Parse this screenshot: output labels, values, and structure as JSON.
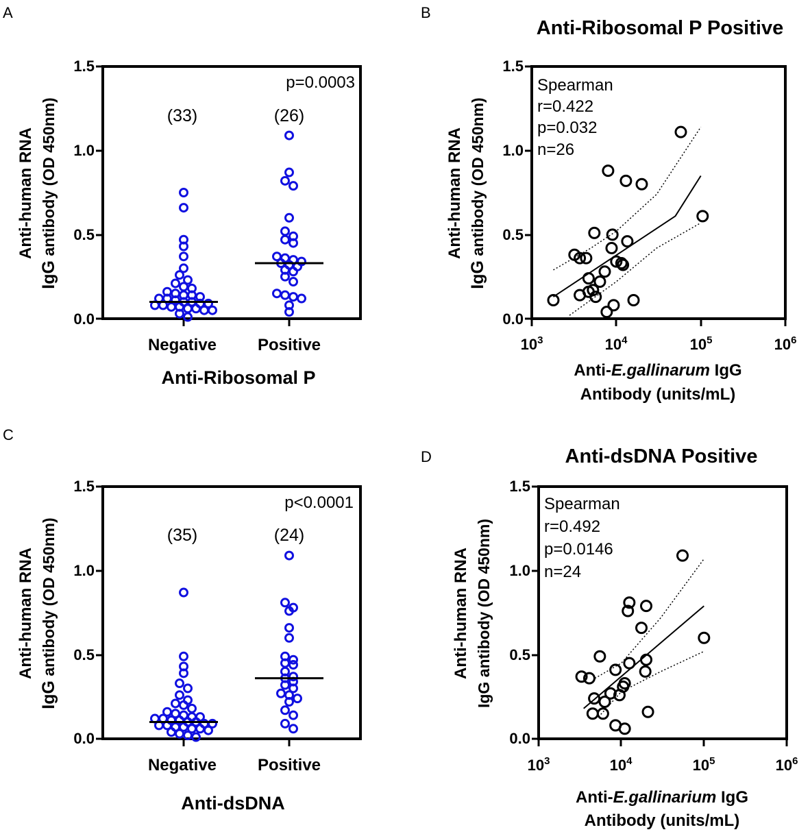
{
  "figure": {
    "colors": {
      "axis": "#000000",
      "scatter_blue": "#1010e0",
      "scatter_black": "#000000"
    }
  },
  "chart_data": [
    {
      "panel": "A",
      "type": "scatter",
      "title": "",
      "xlabel": "Anti-Ribosomal  P",
      "ylabel_line1": "Anti-human RNA",
      "ylabel_line2_bold": "IgG",
      "ylabel_line2_rest": " antibody (OD 450nm)",
      "ylim": [
        0,
        1.5
      ],
      "yticks": [
        "0.0",
        "0.5",
        "1.0",
        "1.5"
      ],
      "yticks_values": [
        0,
        0.5,
        1.0,
        1.5
      ],
      "categories": [
        "Negative",
        "Positive"
      ],
      "counts": [
        "(33)",
        "(26)"
      ],
      "annotation": "p=0.0003",
      "series": [
        {
          "name": "Negative",
          "median": 0.1,
          "values": [
            0.75,
            0.66,
            0.47,
            0.43,
            0.37,
            0.3,
            0.26,
            0.23,
            0.21,
            0.19,
            0.18,
            0.16,
            0.15,
            0.14,
            0.14,
            0.13,
            0.12,
            0.12,
            0.11,
            0.1,
            0.1,
            0.09,
            0.09,
            0.08,
            0.08,
            0.07,
            0.07,
            0.06,
            0.06,
            0.05,
            0.05,
            0.03,
            0.01
          ]
        },
        {
          "name": "Positive",
          "median": 0.33,
          "values": [
            1.09,
            0.87,
            0.82,
            0.79,
            0.6,
            0.52,
            0.49,
            0.47,
            0.45,
            0.37,
            0.36,
            0.35,
            0.34,
            0.33,
            0.32,
            0.31,
            0.29,
            0.28,
            0.25,
            0.22,
            0.15,
            0.14,
            0.13,
            0.12,
            0.08,
            0.04
          ]
        }
      ]
    },
    {
      "panel": "B",
      "type": "scatter",
      "title": "Anti-Ribosomal P Positive",
      "xlabel_pre": "Anti-",
      "xlabel_italic": "E.gallinarum",
      "xlabel_post": " IgG",
      "xlabel_line2": "Antibody (units/mL)",
      "ylabel_line1": "Anti-human RNA",
      "ylabel_line2_bold": "IgG",
      "ylabel_line2_rest": " antibody (OD 450nm)",
      "xscale": "log",
      "xlim": [
        1000,
        1000000
      ],
      "ylim": [
        0,
        1.5
      ],
      "yticks": [
        "0.0",
        "0.5",
        "1.0",
        "1.5"
      ],
      "yticks_values": [
        0,
        0.5,
        1.0,
        1.5
      ],
      "xticks": [
        {
          "base": "10",
          "exp": "3"
        },
        {
          "base": "10",
          "exp": "4"
        },
        {
          "base": "10",
          "exp": "5"
        },
        {
          "base": "10",
          "exp": "6"
        }
      ],
      "xticks_values": [
        1000,
        10000,
        100000,
        1000000
      ],
      "stats": [
        "Spearman",
        "r=0.422",
        "p=0.032",
        "n=26"
      ],
      "points": [
        [
          58000,
          1.11
        ],
        [
          8000,
          0.88
        ],
        [
          13000,
          0.82
        ],
        [
          20000,
          0.8
        ],
        [
          105000,
          0.61
        ],
        [
          5500,
          0.51
        ],
        [
          9000,
          0.5
        ],
        [
          13500,
          0.46
        ],
        [
          8800,
          0.42
        ],
        [
          3200,
          0.38
        ],
        [
          3700,
          0.36
        ],
        [
          4400,
          0.36
        ],
        [
          10000,
          0.34
        ],
        [
          11500,
          0.33
        ],
        [
          12000,
          0.32
        ],
        [
          7300,
          0.28
        ],
        [
          4700,
          0.24
        ],
        [
          6400,
          0.22
        ],
        [
          5300,
          0.17
        ],
        [
          4700,
          0.16
        ],
        [
          3700,
          0.14
        ],
        [
          5700,
          0.13
        ],
        [
          1800,
          0.11
        ],
        [
          16000,
          0.11
        ],
        [
          9300,
          0.08
        ],
        [
          7700,
          0.04
        ]
      ],
      "fit": {
        "x": [
          1800,
          50000,
          100000
        ],
        "y": [
          0.13,
          0.61,
          0.85
        ]
      },
      "ci_upper": {
        "x": [
          1800,
          5000,
          10000,
          30000,
          100000
        ],
        "y": [
          0.29,
          0.42,
          0.52,
          0.74,
          1.14
        ]
      },
      "ci_lower": {
        "x": [
          2800,
          10000,
          30000,
          100000
        ],
        "y": [
          0.02,
          0.22,
          0.42,
          0.57
        ]
      }
    },
    {
      "panel": "C",
      "type": "scatter",
      "title": "",
      "xlabel": "Anti-dsDNA",
      "ylabel_line1": "Anti-human RNA",
      "ylabel_line2_bold": "IgG",
      "ylabel_line2_rest": " antibody (OD 450nm)",
      "ylim": [
        0,
        1.5
      ],
      "yticks": [
        "0.0",
        "0.5",
        "1.0",
        "1.5"
      ],
      "yticks_values": [
        0,
        0.5,
        1.0,
        1.5
      ],
      "categories": [
        "Negative",
        "Positive"
      ],
      "counts": [
        "(35)",
        "(24)"
      ],
      "annotation": "p<0.0001",
      "series": [
        {
          "name": "Negative",
          "median": 0.1,
          "values": [
            0.87,
            0.49,
            0.43,
            0.39,
            0.33,
            0.3,
            0.26,
            0.23,
            0.21,
            0.2,
            0.18,
            0.16,
            0.15,
            0.14,
            0.13,
            0.13,
            0.12,
            0.12,
            0.11,
            0.11,
            0.1,
            0.1,
            0.09,
            0.09,
            0.08,
            0.08,
            0.07,
            0.07,
            0.06,
            0.06,
            0.05,
            0.04,
            0.03,
            0.02,
            0.01
          ]
        },
        {
          "name": "Positive",
          "median": 0.36,
          "values": [
            1.09,
            0.81,
            0.78,
            0.76,
            0.66,
            0.6,
            0.49,
            0.47,
            0.45,
            0.44,
            0.4,
            0.37,
            0.36,
            0.34,
            0.32,
            0.3,
            0.27,
            0.26,
            0.24,
            0.22,
            0.17,
            0.14,
            0.09,
            0.06
          ]
        }
      ]
    },
    {
      "panel": "D",
      "type": "scatter",
      "title": "Anti-dsDNA Positive",
      "xlabel_pre": "Anti-",
      "xlabel_italic": "E.gallinarium",
      "xlabel_post": " IgG",
      "xlabel_line2": "Antibody (units/mL)",
      "ylabel_line1": "Anti-human RNA",
      "ylabel_line2_bold": "",
      "ylabel_line2_rest": "IgG antibody (OD 450nm)",
      "xscale": "log",
      "xlim": [
        1000,
        1000000
      ],
      "ylim": [
        0,
        1.5
      ],
      "yticks": [
        "0.0",
        "0.5",
        "1.0",
        "1.5"
      ],
      "yticks_values": [
        0,
        0.5,
        1.0,
        1.5
      ],
      "xticks": [
        {
          "base": "10",
          "exp": "3"
        },
        {
          "base": "10",
          "exp": "4"
        },
        {
          "base": "10",
          "exp": "5"
        },
        {
          "base": "10",
          "exp": "6"
        }
      ],
      "xticks_values": [
        1000,
        10000,
        100000,
        1000000
      ],
      "stats": [
        "Spearman",
        "r=0.492",
        "p=0.0146",
        "n=24"
      ],
      "points": [
        [
          55000,
          1.09
        ],
        [
          12500,
          0.81
        ],
        [
          20000,
          0.79
        ],
        [
          12000,
          0.76
        ],
        [
          17500,
          0.66
        ],
        [
          100000,
          0.6
        ],
        [
          5500,
          0.49
        ],
        [
          20000,
          0.47
        ],
        [
          12500,
          0.45
        ],
        [
          8500,
          0.41
        ],
        [
          19500,
          0.4
        ],
        [
          3300,
          0.37
        ],
        [
          4100,
          0.36
        ],
        [
          11000,
          0.33
        ],
        [
          10500,
          0.31
        ],
        [
          7400,
          0.27
        ],
        [
          9500,
          0.26
        ],
        [
          4700,
          0.24
        ],
        [
          6300,
          0.22
        ],
        [
          21000,
          0.16
        ],
        [
          4500,
          0.15
        ],
        [
          6000,
          0.15
        ],
        [
          8500,
          0.08
        ],
        [
          11000,
          0.06
        ]
      ],
      "fit": {
        "x": [
          3500,
          100000
        ],
        "y": [
          0.18,
          0.79
        ]
      },
      "ci_upper": {
        "x": [
          4800,
          10000,
          30000,
          100000
        ],
        "y": [
          0.36,
          0.45,
          0.72,
          1.07
        ]
      },
      "ci_lower": {
        "x": [
          5300,
          10000,
          30000,
          100000
        ],
        "y": [
          0.13,
          0.28,
          0.4,
          0.52
        ]
      }
    }
  ]
}
